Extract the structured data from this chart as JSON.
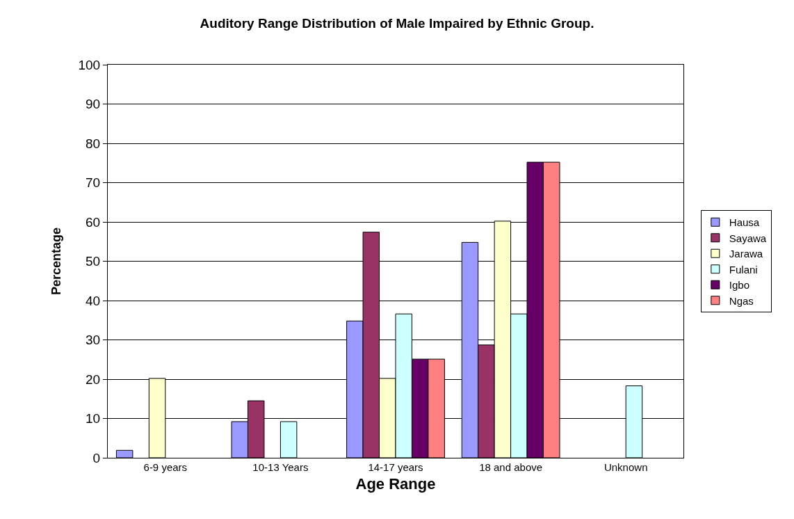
{
  "chart_data": {
    "type": "bar",
    "title": "Auditory Range Distribution of Male Impaired by Ethnic Group.",
    "xlabel": "Age Range",
    "ylabel": "Percentage",
    "categories": [
      "6-9 years",
      "10-13 Years",
      "14-17 years",
      "18 and above",
      "Unknown"
    ],
    "series": [
      {
        "name": "Hausa",
        "color": "#9999ff",
        "values": [
          1.9,
          9.2,
          34.8,
          54.8,
          null
        ]
      },
      {
        "name": "Sayawa",
        "color": "#993366",
        "values": [
          null,
          14.5,
          57.4,
          28.7,
          null
        ]
      },
      {
        "name": "Jarawa",
        "color": "#ffffcc",
        "values": [
          20.2,
          null,
          20.2,
          60.2,
          null
        ]
      },
      {
        "name": "Fulani",
        "color": "#ccffff",
        "values": [
          null,
          9.2,
          36.6,
          36.6,
          18.3
        ]
      },
      {
        "name": "Igbo",
        "color": "#660066",
        "values": [
          null,
          null,
          25.1,
          75.2,
          null
        ]
      },
      {
        "name": "Ngas",
        "color": "#ff8080",
        "values": [
          null,
          null,
          25.1,
          75.2,
          null
        ]
      }
    ],
    "ylim": [
      0,
      100
    ],
    "yticks": [
      0,
      10,
      20,
      30,
      40,
      50,
      60,
      70,
      80,
      90,
      100
    ],
    "grid": "y",
    "legend": "right"
  }
}
